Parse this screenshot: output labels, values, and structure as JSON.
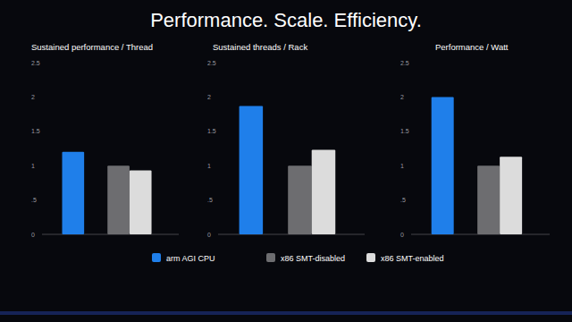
{
  "slide_title": "Performance. Scale. Efficiency.",
  "chart_data": [
    {
      "type": "bar",
      "title": "Sustained performance / Thread",
      "categories": [
        null
      ],
      "ylim": [
        0,
        2.5
      ],
      "yticks": [
        0,
        {
          "value": 0.5,
          "label": ".5"
        },
        1,
        1.5,
        2,
        2.5
      ],
      "grid": false,
      "legend": "bottom",
      "series": [
        {
          "name": "arm AGI CPU",
          "color": "#1f7fea",
          "values": [
            1.2
          ]
        },
        {
          "name": "x86 SMT-disabled",
          "color": "#6d6d70",
          "values": [
            1.0
          ]
        },
        {
          "name": "x86 SMT-enabled",
          "color": "#dcdcdc",
          "values": [
            0.93
          ]
        }
      ]
    },
    {
      "type": "bar",
      "title": "Sustained threads / Rack",
      "categories": [
        null
      ],
      "ylim": [
        0,
        2.5
      ],
      "yticks": [
        0,
        {
          "value": 0.5,
          "label": ".5"
        },
        1,
        1.5,
        2,
        2.5
      ],
      "grid": false,
      "series": [
        {
          "color": "#1f7fea",
          "values": [
            1.87
          ]
        },
        {
          "color": "#6d6d70",
          "values": [
            1.0
          ]
        },
        {
          "color": "#dcdcdc",
          "values": [
            1.23
          ]
        }
      ]
    },
    {
      "type": "bar",
      "title": "Performance / Watt",
      "categories": [
        null
      ],
      "ylim": [
        0,
        2.5
      ],
      "yticks": [
        0,
        {
          "value": 0.5,
          "label": ".5"
        },
        1,
        1.5,
        2,
        2.5
      ],
      "grid": false,
      "series": [
        {
          "color": "#1f7fea",
          "values": [
            2.0
          ]
        },
        {
          "color": "#6d6d70",
          "values": [
            1.0
          ]
        },
        {
          "color": "#dcdcdc",
          "values": [
            1.13
          ]
        }
      ]
    }
  ]
}
